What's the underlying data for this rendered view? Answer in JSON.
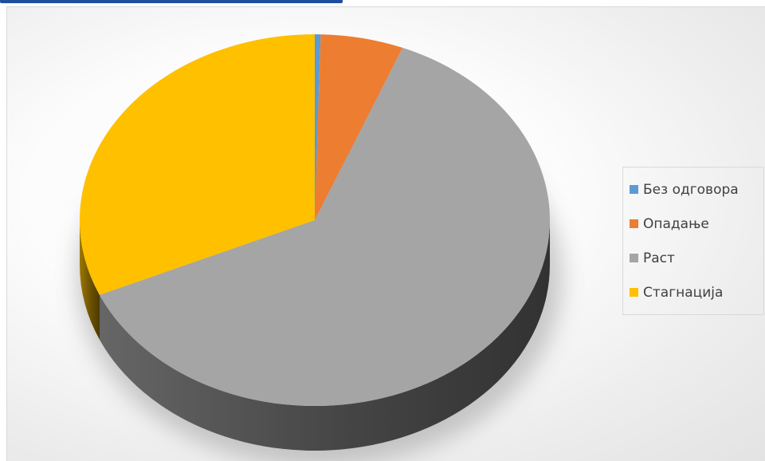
{
  "chart_data": {
    "type": "pie",
    "style": "3d",
    "title": "",
    "categories": [
      "Без одговора",
      "Опадање",
      "Раст",
      "Стагнација"
    ],
    "values": [
      0.4,
      5.7,
      62.3,
      31.6
    ],
    "colors": [
      "#5b9bd5",
      "#ed7d31",
      "#a5a5a5",
      "#ffc000"
    ],
    "legend_position": "right"
  }
}
